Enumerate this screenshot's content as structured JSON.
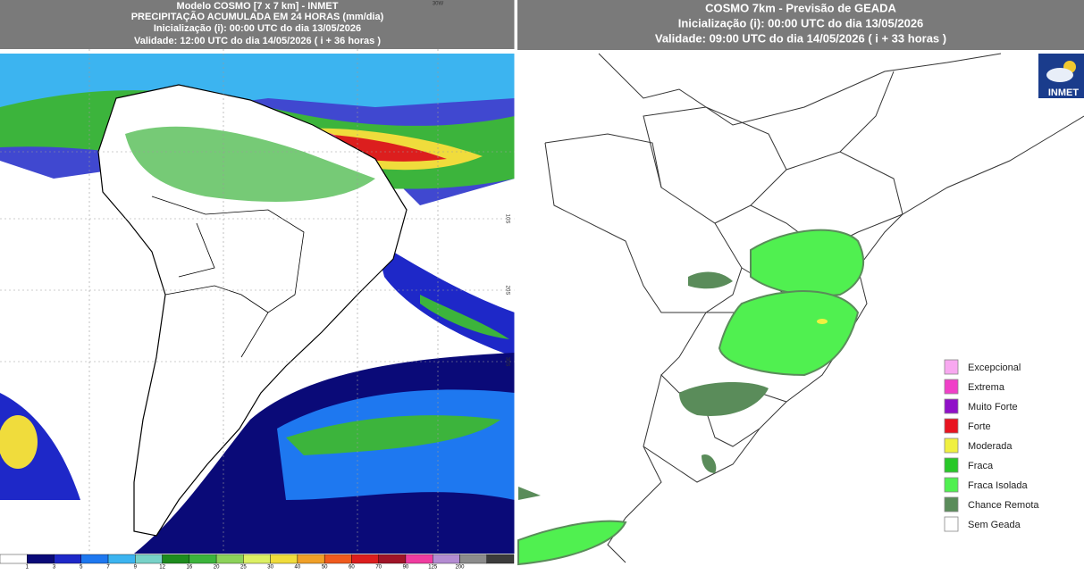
{
  "left_panel": {
    "header": {
      "line1": "Modelo COSMO [7 x 7 km] - INMET",
      "line2": "PRECIPITAÇÃO ACUMULADA EM 24 HORAS (mm/dia)",
      "line3": "Inicialização (i): 00:00 UTC do dia 13/05/2026",
      "line4": "Validade: 12:00 UTC do dia 14/05/2026 ( i + 36 horas )"
    },
    "lon_labels": [
      "30W"
    ],
    "lat_labels": [
      "10S",
      "20S",
      "30S"
    ],
    "colorbar": {
      "labels": [
        "1",
        "3",
        "5",
        "7",
        "9",
        "12",
        "16",
        "20",
        "25",
        "30",
        "40",
        "50",
        "60",
        "70",
        "90",
        "125",
        "200"
      ],
      "colors": [
        "#ffffff",
        "#0a0a78",
        "#1e28c8",
        "#1e78f0",
        "#3cb4f0",
        "#78d2c8",
        "#1e8c1e",
        "#3cb43c",
        "#8cd25a",
        "#dcf064",
        "#f0dc3c",
        "#f0a028",
        "#f05a1e",
        "#dc1e1e",
        "#a01428",
        "#f03ca0",
        "#b48cd2",
        "#8c8c8c",
        "#3c3c3c"
      ]
    }
  },
  "right_panel": {
    "header": {
      "line1": "COSMO 7km - Previsão de GEADA",
      "line2": "Inicialização (i): 00:00 UTC do dia 13/05/2026",
      "line3": "Validade: 09:00 UTC do dia 14/05/2026 ( i + 33 horas )"
    },
    "logo": "INMET",
    "legend": [
      {
        "label": "Excepcional",
        "color": "#f8a8f0"
      },
      {
        "label": "Extrema",
        "color": "#f040c8"
      },
      {
        "label": "Muito Forte",
        "color": "#9010c8"
      },
      {
        "label": "Forte",
        "color": "#e81420"
      },
      {
        "label": "Moderada",
        "color": "#f0f040"
      },
      {
        "label": "Fraca",
        "color": "#28c828"
      },
      {
        "label": "Fraca Isolada",
        "color": "#50f050"
      },
      {
        "label": "Chance Remota",
        "color": "#5a8c5a"
      },
      {
        "label": "Sem Geada",
        "color": "#ffffff"
      }
    ]
  }
}
